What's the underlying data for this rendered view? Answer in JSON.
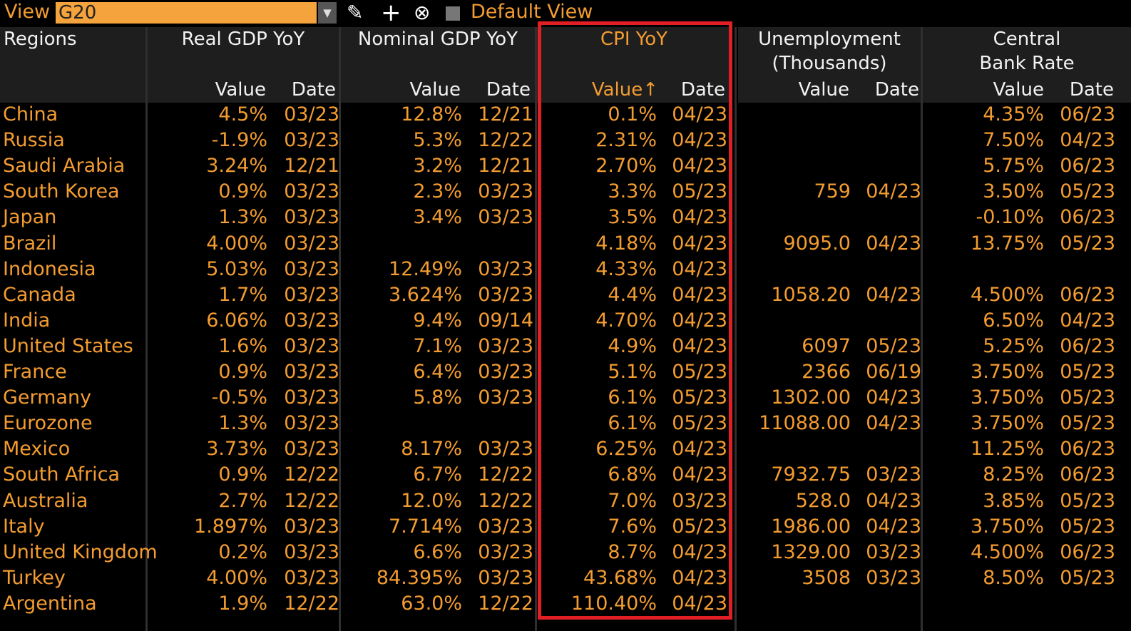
{
  "toolbar": {
    "view_label": "View",
    "view_value": "G20",
    "dropdown_arrow": "▼",
    "edit_icon": "✎",
    "add_icon": "+",
    "delete_icon": "⊗",
    "default_view_label": "Default View"
  },
  "headers": {
    "regions": "Regions",
    "real_gdp": "Real GDP YoY",
    "nominal_gdp": "Nominal GDP YoY",
    "cpi": "CPI YoY",
    "unemployment_line1": "Unemployment",
    "unemployment_line2": "(Thousands)",
    "central_bank_line1": "Central",
    "central_bank_line2": "Bank Rate",
    "value": "Value",
    "value_sorted": "Value↑",
    "date": "Date"
  },
  "rows": [
    {
      "region": "China",
      "rg_v": "4.5%",
      "rg_d": "03/23",
      "ng_v": "12.8%",
      "ng_d": "12/21",
      "cpi_v": "0.1%",
      "cpi_d": "04/23",
      "un_v": "",
      "un_d": "",
      "cb_v": "4.35%",
      "cb_d": "06/23"
    },
    {
      "region": "Russia",
      "rg_v": "-1.9%",
      "rg_d": "03/23",
      "ng_v": "5.3%",
      "ng_d": "12/22",
      "cpi_v": "2.31%",
      "cpi_d": "04/23",
      "un_v": "",
      "un_d": "",
      "cb_v": "7.50%",
      "cb_d": "04/23"
    },
    {
      "region": "Saudi Arabia",
      "rg_v": "3.24%",
      "rg_d": "12/21",
      "ng_v": "3.2%",
      "ng_d": "12/21",
      "cpi_v": "2.70%",
      "cpi_d": "04/23",
      "un_v": "",
      "un_d": "",
      "cb_v": "5.75%",
      "cb_d": "06/23"
    },
    {
      "region": "South Korea",
      "rg_v": "0.9%",
      "rg_d": "03/23",
      "ng_v": "2.3%",
      "ng_d": "03/23",
      "cpi_v": "3.3%",
      "cpi_d": "05/23",
      "un_v": "759",
      "un_d": "04/23",
      "cb_v": "3.50%",
      "cb_d": "05/23"
    },
    {
      "region": "Japan",
      "rg_v": "1.3%",
      "rg_d": "03/23",
      "ng_v": "3.4%",
      "ng_d": "03/23",
      "cpi_v": "3.5%",
      "cpi_d": "04/23",
      "un_v": "",
      "un_d": "",
      "cb_v": "-0.10%",
      "cb_d": "06/23"
    },
    {
      "region": "Brazil",
      "rg_v": "4.00%",
      "rg_d": "03/23",
      "ng_v": "",
      "ng_d": "",
      "cpi_v": "4.18%",
      "cpi_d": "04/23",
      "un_v": "9095.0",
      "un_d": "04/23",
      "cb_v": "13.75%",
      "cb_d": "05/23"
    },
    {
      "region": "Indonesia",
      "rg_v": "5.03%",
      "rg_d": "03/23",
      "ng_v": "12.49%",
      "ng_d": "03/23",
      "cpi_v": "4.33%",
      "cpi_d": "04/23",
      "un_v": "",
      "un_d": "",
      "cb_v": "",
      "cb_d": ""
    },
    {
      "region": "Canada",
      "rg_v": "1.7%",
      "rg_d": "03/23",
      "ng_v": "3.624%",
      "ng_d": "03/23",
      "cpi_v": "4.4%",
      "cpi_d": "04/23",
      "un_v": "1058.20",
      "un_d": "04/23",
      "cb_v": "4.500%",
      "cb_d": "06/23"
    },
    {
      "region": "India",
      "rg_v": "6.06%",
      "rg_d": "03/23",
      "ng_v": "9.4%",
      "ng_d": "09/14",
      "cpi_v": "4.70%",
      "cpi_d": "04/23",
      "un_v": "",
      "un_d": "",
      "cb_v": "6.50%",
      "cb_d": "04/23"
    },
    {
      "region": "United States",
      "rg_v": "1.6%",
      "rg_d": "03/23",
      "ng_v": "7.1%",
      "ng_d": "03/23",
      "cpi_v": "4.9%",
      "cpi_d": "04/23",
      "un_v": "6097",
      "un_d": "05/23",
      "cb_v": "5.25%",
      "cb_d": "06/23"
    },
    {
      "region": "France",
      "rg_v": "0.9%",
      "rg_d": "03/23",
      "ng_v": "6.4%",
      "ng_d": "03/23",
      "cpi_v": "5.1%",
      "cpi_d": "05/23",
      "un_v": "2366",
      "un_d": "06/19",
      "cb_v": "3.750%",
      "cb_d": "05/23"
    },
    {
      "region": "Germany",
      "rg_v": "-0.5%",
      "rg_d": "03/23",
      "ng_v": "5.8%",
      "ng_d": "03/23",
      "cpi_v": "6.1%",
      "cpi_d": "05/23",
      "un_v": "1302.00",
      "un_d": "04/23",
      "cb_v": "3.750%",
      "cb_d": "05/23"
    },
    {
      "region": "Eurozone",
      "rg_v": "1.3%",
      "rg_d": "03/23",
      "ng_v": "",
      "ng_d": "",
      "cpi_v": "6.1%",
      "cpi_d": "05/23",
      "un_v": "11088.00",
      "un_d": "04/23",
      "cb_v": "3.750%",
      "cb_d": "05/23"
    },
    {
      "region": "Mexico",
      "rg_v": "3.73%",
      "rg_d": "03/23",
      "ng_v": "8.17%",
      "ng_d": "03/23",
      "cpi_v": "6.25%",
      "cpi_d": "04/23",
      "un_v": "",
      "un_d": "",
      "cb_v": "11.25%",
      "cb_d": "06/23"
    },
    {
      "region": "South Africa",
      "rg_v": "0.9%",
      "rg_d": "12/22",
      "ng_v": "6.7%",
      "ng_d": "12/22",
      "cpi_v": "6.8%",
      "cpi_d": "04/23",
      "un_v": "7932.75",
      "un_d": "03/23",
      "cb_v": "8.25%",
      "cb_d": "06/23"
    },
    {
      "region": "Australia",
      "rg_v": "2.7%",
      "rg_d": "12/22",
      "ng_v": "12.0%",
      "ng_d": "12/22",
      "cpi_v": "7.0%",
      "cpi_d": "03/23",
      "un_v": "528.0",
      "un_d": "04/23",
      "cb_v": "3.85%",
      "cb_d": "05/23"
    },
    {
      "region": "Italy",
      "rg_v": "1.897%",
      "rg_d": "03/23",
      "ng_v": "7.714%",
      "ng_d": "03/23",
      "cpi_v": "7.6%",
      "cpi_d": "05/23",
      "un_v": "1986.00",
      "un_d": "04/23",
      "cb_v": "3.750%",
      "cb_d": "05/23"
    },
    {
      "region": "United Kingdom",
      "rg_v": "0.2%",
      "rg_d": "03/23",
      "ng_v": "6.6%",
      "ng_d": "03/23",
      "cpi_v": "8.7%",
      "cpi_d": "04/23",
      "un_v": "1329.00",
      "un_d": "03/23",
      "cb_v": "4.500%",
      "cb_d": "06/23"
    },
    {
      "region": "Turkey",
      "rg_v": "4.00%",
      "rg_d": "03/23",
      "ng_v": "84.395%",
      "ng_d": "03/23",
      "cpi_v": "43.68%",
      "cpi_d": "04/23",
      "un_v": "3508",
      "un_d": "03/23",
      "cb_v": "8.50%",
      "cb_d": "05/23"
    },
    {
      "region": "Argentina",
      "rg_v": "1.9%",
      "rg_d": "12/22",
      "ng_v": "63.0%",
      "ng_d": "12/22",
      "cpi_v": "110.40%",
      "cpi_d": "04/23",
      "un_v": "",
      "un_d": "",
      "cb_v": "",
      "cb_d": ""
    }
  ]
}
